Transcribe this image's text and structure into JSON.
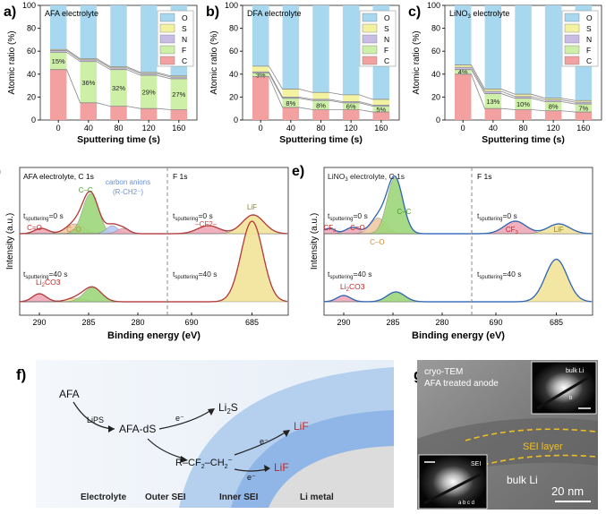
{
  "colors": {
    "O": "#a8d8f0",
    "S": "#f2f2a0",
    "N": "#c8bce4",
    "F": "#cdefa8",
    "C": "#f2a0a0",
    "line": "#8a8a8a",
    "fit_red": "#d03838",
    "fit_blue": "#2b6fd1",
    "peak_green": "#9ed67a",
    "peak_orange": "#f0c9a4",
    "peak_yellow": "#f2e49a",
    "peak_red": "#f0a8b8",
    "peak_blue": "#b8c8f4",
    "accent_red": "#cc2222"
  },
  "bar_panels": [
    {
      "label": "a)",
      "title": "AFA electrolyte",
      "xlabel": "Sputtering time (s)",
      "ylabel": "Atomic ratio (%)",
      "yticks": [
        "0",
        "20",
        "40",
        "60",
        "80",
        "100"
      ],
      "categories": [
        "0",
        "40",
        "80",
        "120",
        "160"
      ],
      "F": [
        15,
        36,
        32,
        29,
        27
      ],
      "F_labels": [
        "15%",
        "36%",
        "32%",
        "29%",
        "27%"
      ],
      "C": [
        44,
        15,
        12,
        10,
        9
      ],
      "N": [
        1.5,
        1.5,
        1.5,
        1.5,
        1.5
      ],
      "S": [
        1,
        1,
        1,
        1,
        1
      ],
      "legend": [
        "O",
        "S",
        "N",
        "F",
        "C"
      ]
    },
    {
      "label": "b)",
      "title": "DFA electrolyte",
      "xlabel": "Sputtering time (s)",
      "ylabel": "Atomic ratio (%)",
      "yticks": [
        "0",
        "20",
        "40",
        "60",
        "80",
        "100"
      ],
      "categories": [
        "0",
        "40",
        "80",
        "120",
        "160"
      ],
      "F": [
        3,
        8,
        8,
        6,
        5
      ],
      "F_labels": [
        "3%",
        "8%",
        "8%",
        "6%",
        "5%"
      ],
      "C": [
        38,
        11,
        9,
        9,
        7
      ],
      "N": [
        1,
        1,
        1,
        1,
        1
      ],
      "S": [
        5,
        7,
        6,
        6,
        5
      ],
      "legend": [
        "O",
        "S",
        "N",
        "F",
        "C"
      ]
    },
    {
      "label": "c)",
      "title": "LiNO3 electrolyte",
      "xlabel": "Sputtering time (s)",
      "ylabel": "Atomic ratio (%)",
      "yticks": [
        "0",
        "20",
        "40",
        "60",
        "80",
        "100"
      ],
      "categories": [
        "0",
        "40",
        "80",
        "120",
        "160"
      ],
      "F": [
        4,
        13,
        10,
        8,
        7
      ],
      "F_labels": [
        "4%",
        "13%",
        "10%",
        "8%",
        "7%"
      ],
      "C": [
        40,
        10,
        9,
        8,
        7
      ],
      "N": [
        2,
        2,
        1.5,
        1.5,
        1.5
      ],
      "S": [
        2,
        2,
        2,
        1.5,
        1.5
      ],
      "legend": [
        "O",
        "S",
        "N",
        "F",
        "C"
      ]
    }
  ],
  "xps_panels": [
    {
      "label": "d)",
      "left_title": "AFA electrolyte, C 1s",
      "right_title": "F 1s",
      "t0": "tsputtering=0 s",
      "t40": "tsputtering=40 s",
      "c_ticks": [
        "290",
        "285",
        "280"
      ],
      "f_ticks": [
        "690",
        "685"
      ],
      "peaks": [
        "C=O",
        "C–O",
        "C–C",
        "carbon anions",
        "(R-CH2⁻)",
        "–CF2–",
        "LiF",
        "Li2CO3"
      ]
    },
    {
      "label": "e)",
      "left_title": "LiNO3 electrolyte, C 1s",
      "right_title": "F 1s",
      "t0": "tsputtering=0 s",
      "t40": "tsputtering=40 s",
      "c_ticks": [
        "290",
        "285",
        "280"
      ],
      "f_ticks": [
        "690",
        "685"
      ],
      "peaks": [
        "CF3",
        "C=O",
        "C–O",
        "C–C",
        "CF3",
        "LiF",
        "Li2CO3"
      ]
    }
  ],
  "xps_common": {
    "xlabel": "Binding energy (eV)",
    "ylabel": "Intensity (a.u.)"
  },
  "panel_f": {
    "label": "f)",
    "afa": "AFA",
    "lips": "LiPS",
    "afads": "AFA-dS",
    "e1": "e⁻",
    "li2s": "Li2S",
    "e2": "e⁻",
    "lif1": "LiF",
    "rcf": "R–CF2–CH2⁻",
    "e3": "e⁻",
    "lif2": "LiF",
    "zones": [
      "Electrolyte",
      "Outer SEI",
      "Inner SEI",
      "Li metal"
    ]
  },
  "panel_g": {
    "label": "g)",
    "line1": "cryo-TEM",
    "line2": "AFA treated anode",
    "bulk_inset": "bulk Li",
    "sei_inset": "SEI",
    "sei_layer": "SEI layer",
    "bulk_li": "bulk Li",
    "scale": "20 nm",
    "ring_marks": "a b c d",
    "b_mark": "b"
  }
}
